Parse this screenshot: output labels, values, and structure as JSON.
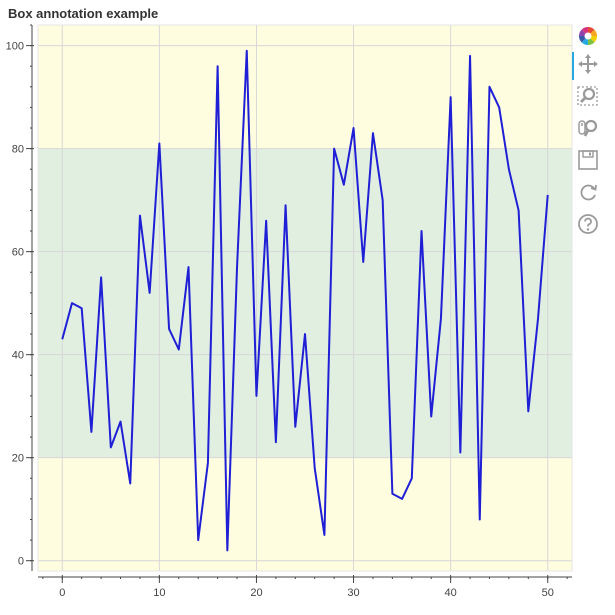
{
  "chart_data": {
    "type": "line",
    "title": "Box annotation example",
    "xlabel": "",
    "ylabel": "",
    "xlim": [
      -2.5,
      52.5
    ],
    "ylim": [
      -2,
      104
    ],
    "x_ticks": [
      0,
      10,
      20,
      30,
      40,
      50
    ],
    "y_ticks": [
      0,
      20,
      40,
      60,
      80,
      100
    ],
    "grid": true,
    "annotations": [
      {
        "type": "box",
        "bottom": 80,
        "top": null,
        "color": "#fffde0"
      },
      {
        "type": "box",
        "bottom": 20,
        "top": 80,
        "color": "#e1efe1"
      },
      {
        "type": "box",
        "bottom": null,
        "top": 20,
        "color": "#fffde0"
      }
    ],
    "series": [
      {
        "color": "#1f1fd6",
        "x": [
          0,
          1,
          2,
          3,
          4,
          5,
          6,
          7,
          8,
          9,
          10,
          11,
          12,
          13,
          14,
          15,
          16,
          17,
          18,
          19,
          20,
          21,
          22,
          23,
          24,
          25,
          26,
          27,
          28,
          29,
          30,
          31,
          32,
          33,
          34,
          35,
          36,
          37,
          38,
          39,
          40,
          41,
          42,
          43,
          44,
          45,
          46,
          47,
          48,
          49,
          50
        ],
        "y": [
          43,
          50,
          49,
          25,
          55,
          22,
          27,
          15,
          67,
          52,
          81,
          45,
          41,
          57,
          4,
          19,
          96,
          2,
          57,
          99,
          32,
          66,
          23,
          69,
          26,
          44,
          18,
          5,
          80,
          73,
          84,
          58,
          83,
          70,
          13,
          12,
          16,
          64,
          28,
          47,
          90,
          21,
          98,
          8,
          92,
          88,
          76,
          68,
          29,
          47,
          71
        ]
      }
    ]
  },
  "toolbar": {
    "tools": [
      {
        "name": "bokeh-logo-icon",
        "active": false
      },
      {
        "name": "pan-tool-icon",
        "active": true
      },
      {
        "name": "box-zoom-tool-icon",
        "active": false
      },
      {
        "name": "wheel-zoom-tool-icon",
        "active": false
      },
      {
        "name": "save-tool-icon",
        "active": false
      },
      {
        "name": "reset-tool-icon",
        "active": false
      },
      {
        "name": "help-tool-icon",
        "active": false
      }
    ]
  }
}
